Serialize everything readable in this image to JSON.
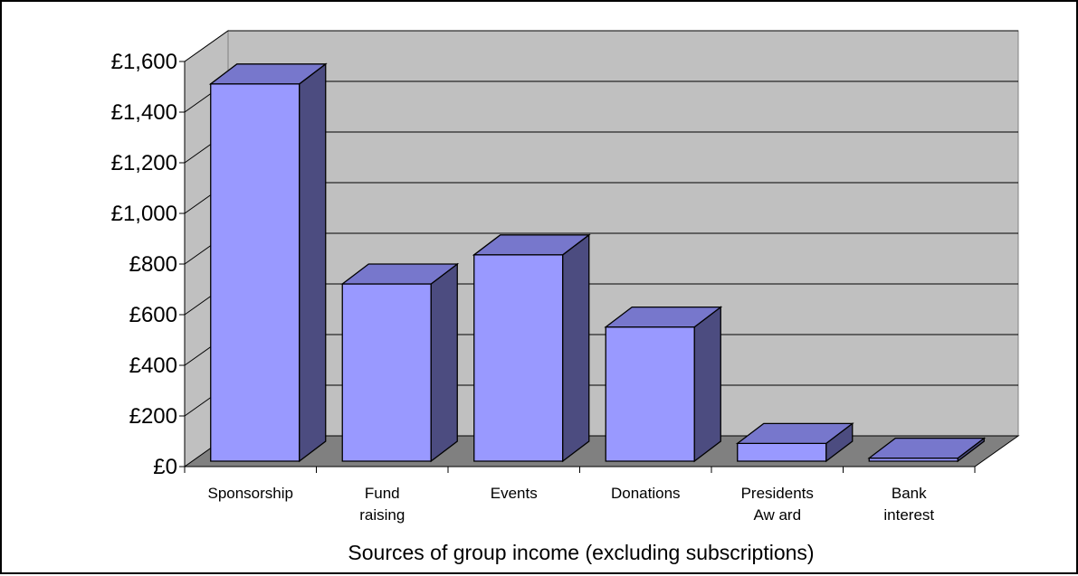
{
  "chart_data": {
    "type": "bar",
    "style": "3d-column",
    "categories": [
      [
        "Sponsorship"
      ],
      [
        "Fund",
        "raising"
      ],
      [
        "Events"
      ],
      [
        "Donations"
      ],
      [
        "Presidents",
        "Aw ard"
      ],
      [
        "Bank",
        "interest"
      ]
    ],
    "values": [
      1490,
      700,
      815,
      530,
      70,
      12
    ],
    "xlabel": "Sources of group income (excluding subscriptions)",
    "ylabel": "",
    "ylim": [
      0,
      1600
    ],
    "yticks": [
      0,
      200,
      400,
      600,
      800,
      1000,
      1200,
      1400,
      1600
    ],
    "yticklabels": [
      "£0",
      "£200",
      "£400",
      "£600",
      "£800",
      "£1,000",
      "£1,200",
      "£1,400",
      "£1,600"
    ],
    "grid": true,
    "legend": "none",
    "colors": {
      "bar_front": "#9999ff",
      "bar_top": "#7777cc",
      "bar_side": "#4c4c80",
      "back_wall": "#c0c0c0",
      "side_wall": "#c0c0c0",
      "floor": "#808080",
      "gridline": "#000000"
    }
  }
}
